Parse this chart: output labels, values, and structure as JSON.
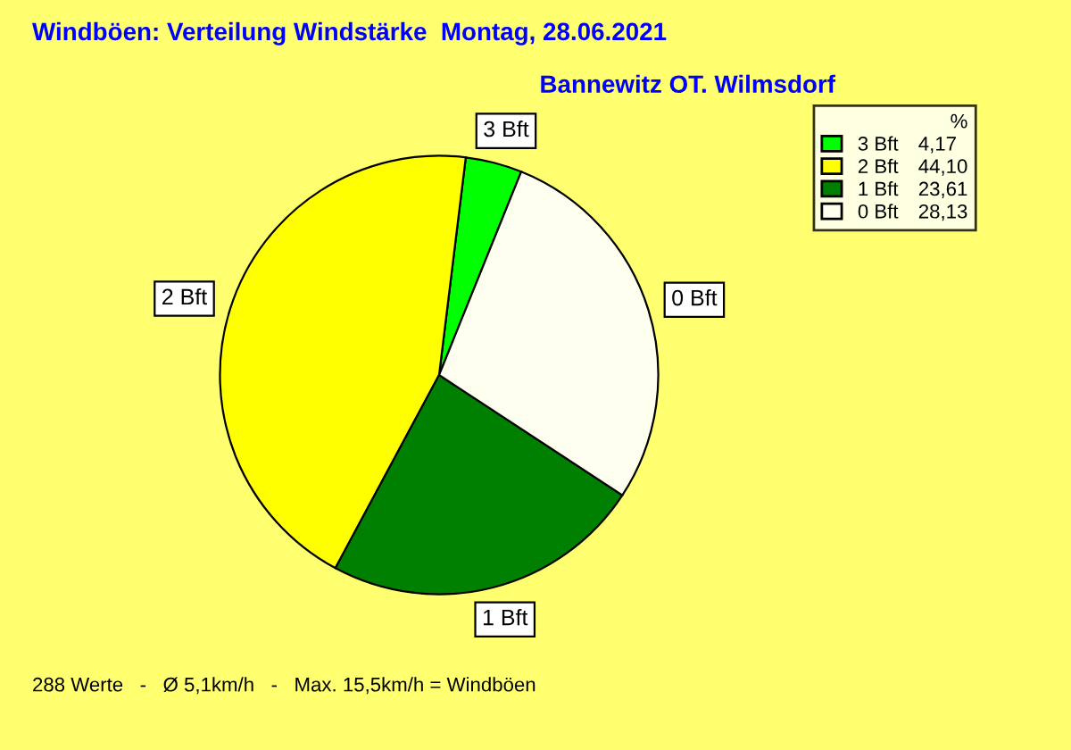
{
  "chart_data": {
    "type": "pie",
    "title": "Windböen: Verteilung Windstärke  Montag, 28.06.2021",
    "subtitle": "Bannewitz OT. Wilmsdorf",
    "categories": [
      "3 Bft",
      "2 Bft",
      "1 Bft",
      "0 Bft"
    ],
    "values": [
      4.17,
      44.1,
      23.61,
      28.13
    ],
    "value_labels": [
      "4,17",
      "44,10",
      "23,61",
      "28,13"
    ],
    "colors": [
      "#00ff00",
      "#ffff00",
      "#008000",
      "#fffff0"
    ],
    "legend_title": "%",
    "legend": "top right",
    "annotations": [
      "288 Werte   -   Ø 5,1km/h   -   Max. 15,5km/h = Windböen"
    ]
  }
}
